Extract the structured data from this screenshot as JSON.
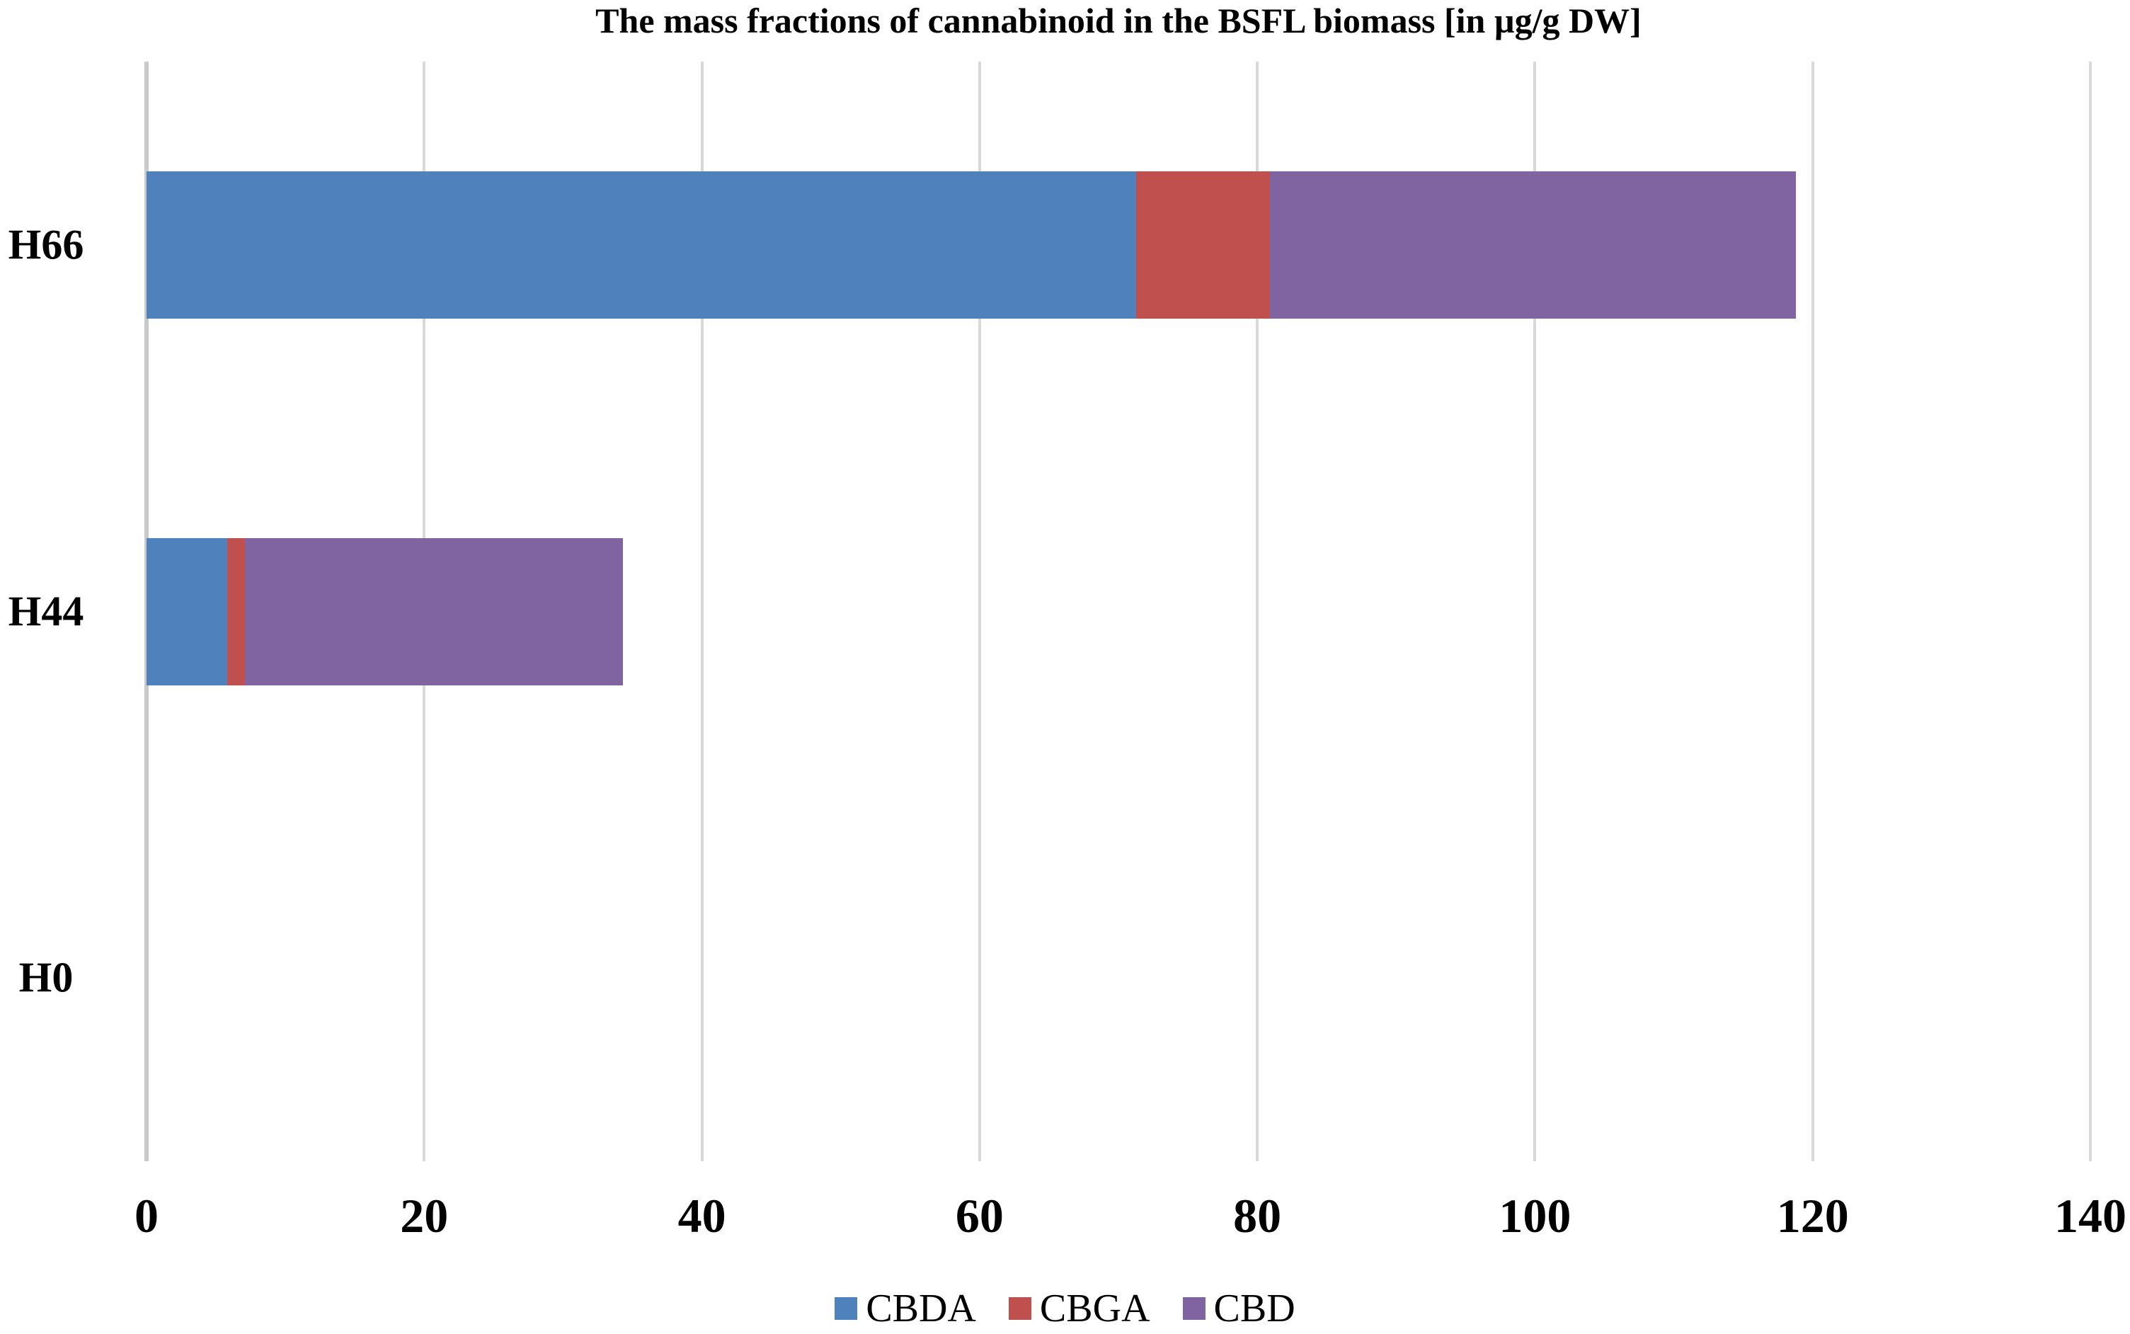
{
  "title": "The mass fractions of cannabinoid in the BSFL biomass [in µg/g DW]",
  "chart_data": {
    "type": "bar",
    "orientation": "horizontal",
    "stacked": true,
    "title": "The mass fractions of cannabinoid in the BSFL biomass [in µg/g DW]",
    "categories": [
      "H66",
      "H44",
      "H0"
    ],
    "series": [
      {
        "name": "CBDA",
        "color": "#4F81BD",
        "values": [
          71.3,
          5.8,
          0
        ]
      },
      {
        "name": "CBGA",
        "color": "#C0504D",
        "values": [
          9.6,
          1.3,
          0
        ]
      },
      {
        "name": "CBD",
        "color": "#8064A2",
        "values": [
          37.9,
          27.2,
          0
        ]
      }
    ],
    "xlim": [
      0,
      140
    ],
    "xticks": [
      0,
      20,
      40,
      60,
      80,
      100,
      120,
      140
    ],
    "xlabel": "",
    "ylabel": "",
    "grid": "vertical",
    "gridline_color": "#D9D9D9",
    "legend_position": "bottom"
  }
}
